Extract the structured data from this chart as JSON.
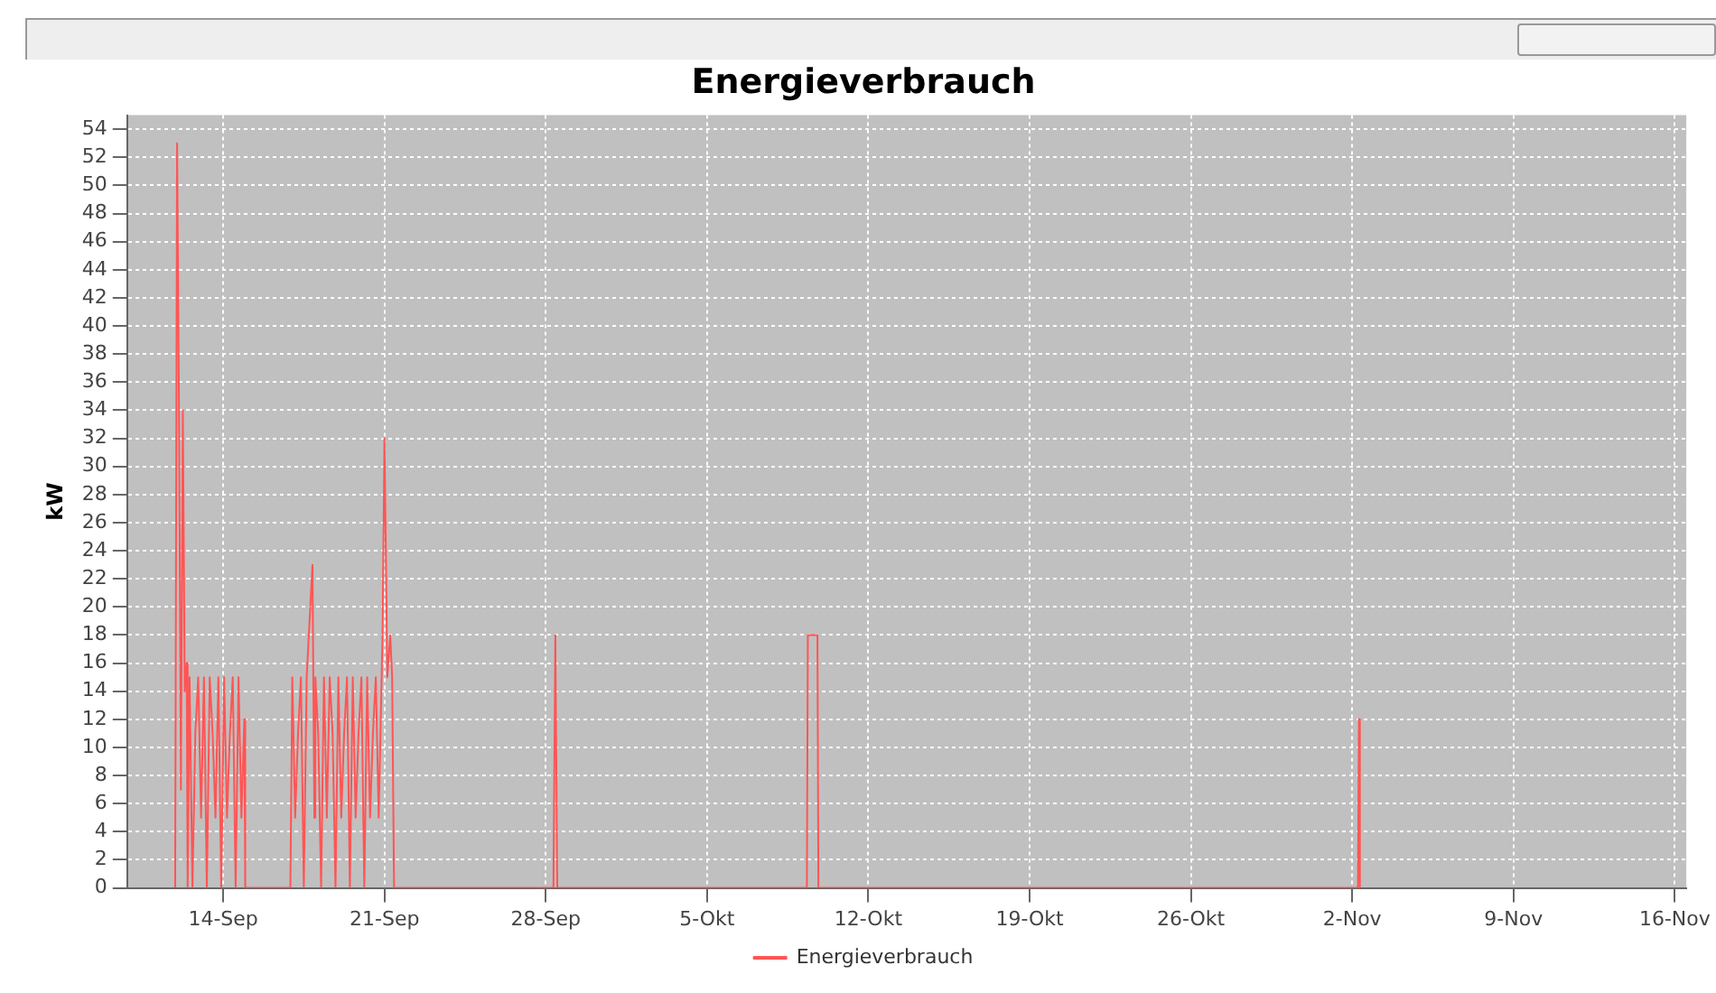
{
  "chart_data": {
    "type": "line",
    "title": "Energieverbrauch",
    "ylabel": "kW",
    "legend": "bottom",
    "grid": true,
    "marker": "none",
    "line_style": "solid",
    "xlim": [
      "--09-09T20:00",
      "--11-16T12:00"
    ],
    "xticks": [
      {
        "value": "--09-14",
        "label": "14-Sep"
      },
      {
        "value": "--09-21",
        "label": "21-Sep"
      },
      {
        "value": "--09-28",
        "label": "28-Sep"
      },
      {
        "value": "--10-05",
        "label": "5-Okt"
      },
      {
        "value": "--10-12",
        "label": "12-Okt"
      },
      {
        "value": "--10-19",
        "label": "19-Okt"
      },
      {
        "value": "--10-26",
        "label": "26-Okt"
      },
      {
        "value": "--11-02",
        "label": "2-Nov"
      },
      {
        "value": "--11-09",
        "label": "9-Nov"
      },
      {
        "value": "--11-16",
        "label": "16-Nov"
      }
    ],
    "ylim": [
      0,
      55
    ],
    "yticks": [
      0,
      2,
      4,
      6,
      8,
      10,
      12,
      14,
      16,
      18,
      20,
      22,
      24,
      26,
      28,
      30,
      32,
      34,
      36,
      38,
      40,
      42,
      44,
      46,
      48,
      50,
      52,
      54
    ],
    "series": [
      {
        "name": "Energieverbrauch",
        "color": "#ff5555",
        "x": [
          "--09-11T22:00",
          "--09-12T00:00",
          "--09-12T02:00",
          "--09-12T04:00",
          "--09-12T06:00",
          "--09-12T08:00",
          "--09-12T10:00",
          "--09-12T11:00",
          "--09-12T13:00",
          "--09-12T16:00",
          "--09-12T19:00",
          "--09-12T22:00",
          "--09-13T01:00",
          "--09-13T04:00",
          "--09-13T07:00",
          "--09-13T10:00",
          "--09-13T13:00",
          "--09-13T16:00",
          "--09-13T19:00",
          "--09-13T22:00",
          "--09-14T01:00",
          "--09-14T04:00",
          "--09-14T07:00",
          "--09-14T10:00",
          "--09-14T13:00",
          "--09-14T16:00",
          "--09-14T19:00",
          "--09-14T22:00",
          "--09-14T23:00",
          "--09-16T22:00",
          "--09-17T00:00",
          "--09-17T03:00",
          "--09-17T06:00",
          "--09-17T09:00",
          "--09-17T12:00",
          "--09-17T15:00",
          "--09-17T21:00",
          "--09-17T23:00",
          "--09-18T00:00",
          "--09-18T03:00",
          "--09-18T06:00",
          "--09-18T09:00",
          "--09-18T12:00",
          "--09-18T15:00",
          "--09-18T18:00",
          "--09-18T21:00",
          "--09-19T00:00",
          "--09-19T03:00",
          "--09-19T06:00",
          "--09-19T09:00",
          "--09-19T12:00",
          "--09-19T15:00",
          "--09-19T18:00",
          "--09-19T21:00",
          "--09-20T00:00",
          "--09-20T03:00",
          "--09-20T06:00",
          "--09-20T09:00",
          "--09-20T12:00",
          "--09-20T15:00",
          "--09-20T18:00",
          "--09-20T22:00",
          "--09-21T00:00",
          "--09-21T03:00",
          "--09-21T06:00",
          "--09-21T08:00",
          "--09-21T10:00",
          "--09-28T08:00",
          "--09-28T10:00",
          "--09-28T12:00",
          "--10-09T08:00",
          "--10-09T09:00",
          "--10-09T14:00",
          "--10-09T19:00",
          "--10-09T20:00",
          "--11-02T06:00",
          "--11-02T07:00",
          "--11-02T08:00"
        ],
        "values": [
          0,
          53,
          34,
          7,
          34,
          14,
          16,
          0,
          15,
          0,
          11,
          15,
          5,
          15,
          0,
          15,
          11,
          5,
          15,
          0,
          15,
          5,
          11,
          15,
          0,
          15,
          5,
          12,
          0,
          0,
          15,
          5,
          11,
          15,
          0,
          15,
          23,
          5,
          15,
          11,
          0,
          15,
          5,
          15,
          11,
          0,
          15,
          5,
          11,
          15,
          0,
          15,
          5,
          11,
          15,
          0,
          15,
          5,
          11,
          15,
          5,
          18,
          32,
          15,
          18,
          15,
          0,
          0,
          18,
          0,
          0,
          18,
          18,
          18,
          0,
          0,
          12,
          0
        ]
      }
    ]
  }
}
